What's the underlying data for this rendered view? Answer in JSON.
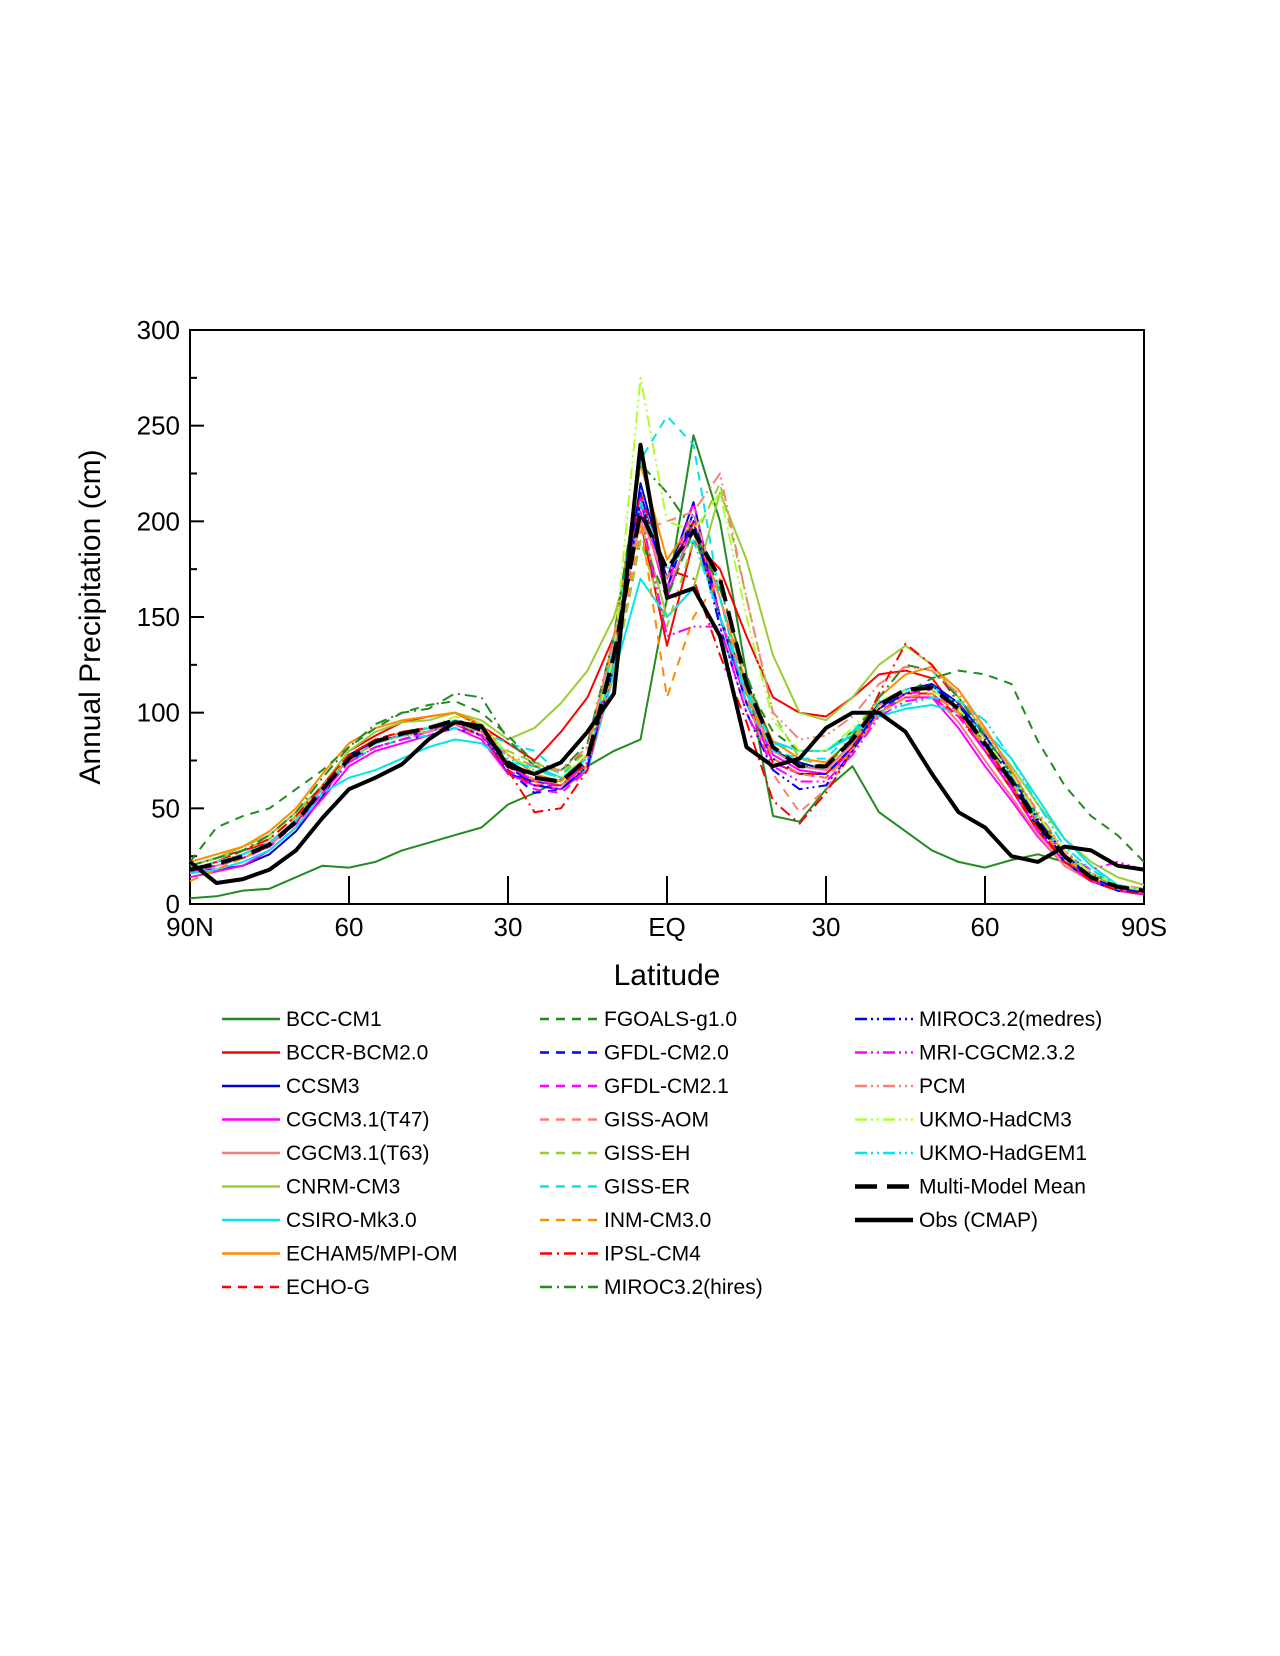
{
  "chart_data": {
    "type": "line",
    "xlabel": "Latitude",
    "ylabel": "Annual Precipitation (cm)",
    "ylim": [
      0,
      300
    ],
    "xlim": [
      -90,
      90
    ],
    "x_ticks": [
      {
        "value": -90,
        "label": "90N"
      },
      {
        "value": -60,
        "label": "60"
      },
      {
        "value": -30,
        "label": "30"
      },
      {
        "value": 0,
        "label": "EQ"
      },
      {
        "value": 30,
        "label": "30"
      },
      {
        "value": 60,
        "label": "60"
      },
      {
        "value": 90,
        "label": "90S"
      }
    ],
    "y_ticks": [
      0,
      50,
      100,
      150,
      200,
      250,
      300
    ],
    "grid": false,
    "legend_placement": "bottom",
    "x": [
      -90,
      -85,
      -80,
      -75,
      -70,
      -65,
      -60,
      -55,
      -50,
      -45,
      -40,
      -35,
      -30,
      -25,
      -20,
      -15,
      -10,
      -5,
      0,
      5,
      10,
      15,
      20,
      25,
      30,
      35,
      40,
      45,
      50,
      55,
      60,
      65,
      70,
      75,
      80,
      85,
      90
    ],
    "series": [
      {
        "name": "BCC-CM1",
        "color": "#228b22",
        "dash": "solid",
        "width": 2,
        "values": [
          3,
          4,
          7,
          8,
          14,
          20,
          19,
          22,
          28,
          32,
          36,
          40,
          52,
          58,
          65,
          72,
          80,
          86,
          160,
          245,
          200,
          120,
          46,
          43,
          60,
          72,
          48,
          38,
          28,
          22,
          19,
          23,
          26,
          22,
          16,
          9,
          7
        ]
      },
      {
        "name": "BCCR-BCM2.0",
        "color": "#ff0000",
        "dash": "solid",
        "width": 2,
        "values": [
          20,
          24,
          28,
          32,
          42,
          62,
          80,
          88,
          95,
          98,
          100,
          93,
          84,
          75,
          90,
          108,
          140,
          200,
          135,
          190,
          175,
          140,
          108,
          100,
          98,
          108,
          120,
          122,
          118,
          100,
          80,
          60,
          38,
          22,
          13,
          8,
          7
        ]
      },
      {
        "name": "CCSM3",
        "color": "#0000cd",
        "dash": "solid",
        "width": 2,
        "values": [
          18,
          18,
          20,
          26,
          38,
          56,
          78,
          85,
          88,
          90,
          95,
          90,
          68,
          64,
          62,
          72,
          120,
          220,
          170,
          210,
          150,
          110,
          80,
          74,
          70,
          84,
          105,
          112,
          115,
          105,
          88,
          68,
          42,
          24,
          14,
          8,
          6
        ]
      },
      {
        "name": "CGCM3.1(T47)",
        "color": "#ff00ff",
        "dash": "solid",
        "width": 2,
        "values": [
          14,
          17,
          20,
          28,
          40,
          55,
          72,
          80,
          84,
          88,
          92,
          86,
          68,
          62,
          60,
          70,
          130,
          210,
          160,
          200,
          150,
          105,
          78,
          70,
          68,
          80,
          100,
          108,
          108,
          92,
          72,
          54,
          35,
          20,
          12,
          7,
          5
        ]
      },
      {
        "name": "CGCM3.1(T63)",
        "color": "#f08080",
        "dash": "solid",
        "width": 2,
        "values": [
          16,
          20,
          24,
          30,
          44,
          60,
          76,
          84,
          88,
          92,
          96,
          90,
          72,
          65,
          62,
          72,
          135,
          205,
          165,
          195,
          150,
          110,
          80,
          72,
          70,
          84,
          104,
          110,
          110,
          95,
          75,
          56,
          36,
          20,
          12,
          7,
          5
        ]
      },
      {
        "name": "CNRM-CM3",
        "color": "#9acd32",
        "dash": "solid",
        "width": 2,
        "values": [
          20,
          24,
          30,
          36,
          48,
          62,
          80,
          90,
          95,
          96,
          100,
          96,
          86,
          92,
          105,
          122,
          150,
          200,
          150,
          165,
          215,
          180,
          130,
          100,
          96,
          108,
          125,
          135,
          125,
          108,
          90,
          72,
          52,
          34,
          22,
          14,
          10
        ]
      },
      {
        "name": "CSIRO-Mk3.0",
        "color": "#00e5ee",
        "dash": "solid",
        "width": 2,
        "values": [
          16,
          18,
          22,
          28,
          40,
          58,
          66,
          70,
          76,
          82,
          86,
          84,
          74,
          72,
          66,
          70,
          120,
          170,
          150,
          165,
          140,
          112,
          85,
          80,
          80,
          88,
          98,
          102,
          104,
          100,
          90,
          76,
          55,
          34,
          20,
          10,
          6
        ]
      },
      {
        "name": "ECHAM5/MPI-OM",
        "color": "#ff8c00",
        "dash": "solid",
        "width": 2,
        "values": [
          22,
          26,
          30,
          38,
          50,
          68,
          84,
          92,
          96,
          98,
          100,
          94,
          78,
          68,
          64,
          78,
          140,
          230,
          180,
          200,
          160,
          115,
          85,
          76,
          74,
          86,
          108,
          120,
          124,
          112,
          92,
          70,
          46,
          26,
          14,
          8,
          6
        ]
      },
      {
        "name": "ECHO-G",
        "color": "#ff0000",
        "dash": "dash",
        "width": 2,
        "values": [
          18,
          22,
          28,
          34,
          46,
          62,
          78,
          86,
          90,
          92,
          94,
          88,
          70,
          62,
          62,
          74,
          130,
          215,
          170,
          200,
          150,
          105,
          74,
          68,
          68,
          82,
          102,
          110,
          110,
          98,
          80,
          60,
          38,
          22,
          12,
          7,
          5
        ]
      },
      {
        "name": "FGOALS-g1.0",
        "color": "#228b22",
        "dash": "dash",
        "width": 2,
        "values": [
          22,
          40,
          46,
          50,
          60,
          70,
          82,
          92,
          100,
          104,
          106,
          100,
          88,
          74,
          70,
          80,
          120,
          190,
          160,
          195,
          150,
          115,
          90,
          80,
          80,
          90,
          100,
          110,
          118,
          122,
          120,
          115,
          85,
          62,
          46,
          36,
          22
        ]
      },
      {
        "name": "GFDL-CM2.0",
        "color": "#0000ff",
        "dash": "dash",
        "width": 2,
        "values": [
          18,
          20,
          24,
          30,
          42,
          58,
          75,
          82,
          86,
          88,
          92,
          88,
          70,
          58,
          60,
          72,
          125,
          215,
          165,
          205,
          150,
          105,
          76,
          68,
          68,
          82,
          102,
          112,
          114,
          102,
          82,
          62,
          40,
          22,
          12,
          7,
          5
        ]
      },
      {
        "name": "GFDL-CM2.1",
        "color": "#ff00ff",
        "dash": "dash",
        "width": 2,
        "values": [
          17,
          20,
          24,
          30,
          42,
          58,
          74,
          82,
          86,
          90,
          94,
          88,
          70,
          60,
          58,
          70,
          125,
          212,
          165,
          210,
          150,
          105,
          74,
          68,
          66,
          80,
          100,
          110,
          112,
          100,
          80,
          60,
          38,
          22,
          12,
          7,
          5
        ]
      },
      {
        "name": "GISS-AOM",
        "color": "#fa8072",
        "dash": "dash",
        "width": 2,
        "values": [
          18,
          22,
          26,
          32,
          44,
          60,
          74,
          82,
          86,
          88,
          92,
          88,
          74,
          68,
          62,
          72,
          120,
          195,
          200,
          205,
          160,
          108,
          68,
          48,
          60,
          80,
          100,
          108,
          110,
          100,
          84,
          64,
          42,
          24,
          14,
          8,
          6
        ]
      },
      {
        "name": "GISS-EH",
        "color": "#9acd32",
        "dash": "dash",
        "width": 2,
        "values": [
          20,
          24,
          28,
          34,
          46,
          62,
          76,
          84,
          88,
          90,
          94,
          90,
          80,
          74,
          68,
          80,
          120,
          190,
          145,
          190,
          220,
          160,
          100,
          76,
          72,
          86,
          104,
          112,
          112,
          102,
          84,
          64,
          44,
          26,
          16,
          10,
          7
        ]
      },
      {
        "name": "GISS-ER",
        "color": "#00e5ee",
        "dash": "dash",
        "width": 2,
        "values": [
          18,
          22,
          26,
          32,
          44,
          60,
          74,
          82,
          86,
          88,
          92,
          90,
          84,
          80,
          68,
          76,
          135,
          232,
          255,
          240,
          160,
          105,
          80,
          76,
          76,
          90,
          106,
          112,
          114,
          104,
          86,
          66,
          44,
          26,
          16,
          10,
          7
        ]
      },
      {
        "name": "INM-CM3.0",
        "color": "#ff8c00",
        "dash": "dash",
        "width": 2,
        "values": [
          12,
          18,
          24,
          32,
          44,
          62,
          76,
          84,
          90,
          92,
          96,
          92,
          74,
          64,
          62,
          72,
          125,
          200,
          108,
          150,
          170,
          110,
          76,
          68,
          66,
          80,
          100,
          108,
          110,
          100,
          82,
          62,
          42,
          24,
          14,
          8,
          6
        ]
      },
      {
        "name": "IPSL-CM4",
        "color": "#ff0000",
        "dash": "dashdot",
        "width": 2,
        "values": [
          18,
          22,
          28,
          34,
          46,
          62,
          78,
          86,
          90,
          92,
          94,
          88,
          70,
          48,
          50,
          70,
          130,
          210,
          175,
          170,
          130,
          95,
          54,
          42,
          58,
          80,
          110,
          136,
          125,
          105,
          84,
          62,
          40,
          22,
          12,
          7,
          5
        ]
      },
      {
        "name": "MIROC3.2(hires)",
        "color": "#228b22",
        "dash": "dashdot",
        "width": 2,
        "values": [
          20,
          24,
          28,
          36,
          48,
          66,
          82,
          94,
          100,
          102,
          110,
          108,
          86,
          72,
          70,
          84,
          140,
          230,
          215,
          195,
          165,
          120,
          82,
          72,
          72,
          88,
          108,
          125,
          122,
          108,
          88,
          68,
          46,
          28,
          16,
          10,
          7
        ]
      },
      {
        "name": "MIROC3.2(medres)",
        "color": "#0000ff",
        "dash": "dashdotdot",
        "width": 2,
        "values": [
          18,
          22,
          26,
          32,
          44,
          60,
          76,
          84,
          88,
          90,
          94,
          88,
          72,
          62,
          60,
          72,
          125,
          210,
          170,
          200,
          145,
          100,
          70,
          60,
          62,
          80,
          102,
          110,
          114,
          104,
          86,
          66,
          44,
          26,
          14,
          8,
          6
        ]
      },
      {
        "name": "MRI-CGCM2.3.2",
        "color": "#ff00ff",
        "dash": "dashdotdot",
        "width": 2,
        "values": [
          18,
          22,
          26,
          32,
          44,
          58,
          74,
          82,
          86,
          90,
          94,
          88,
          72,
          64,
          62,
          74,
          130,
          205,
          140,
          145,
          145,
          100,
          72,
          64,
          64,
          78,
          98,
          106,
          108,
          98,
          80,
          62,
          42,
          26,
          18,
          22,
          18
        ]
      },
      {
        "name": "PCM",
        "color": "#fa8072",
        "dash": "dashdotdot",
        "width": 2,
        "values": [
          18,
          22,
          26,
          32,
          44,
          60,
          76,
          84,
          88,
          90,
          94,
          90,
          78,
          72,
          70,
          82,
          140,
          200,
          170,
          205,
          225,
          160,
          100,
          86,
          88,
          98,
          115,
          124,
          122,
          110,
          90,
          70,
          48,
          28,
          16,
          10,
          8
        ]
      },
      {
        "name": "UKMO-HadCM3",
        "color": "#adff2f",
        "dash": "dashdotdot",
        "width": 2,
        "values": [
          18,
          22,
          26,
          32,
          44,
          60,
          76,
          84,
          88,
          92,
          98,
          94,
          78,
          70,
          66,
          78,
          130,
          275,
          200,
          195,
          215,
          150,
          96,
          80,
          80,
          92,
          106,
          112,
          112,
          102,
          86,
          68,
          46,
          28,
          16,
          10,
          7
        ]
      },
      {
        "name": "UKMO-HadGEM1",
        "color": "#00e5ee",
        "dash": "dashdotdot",
        "width": 2,
        "values": [
          18,
          22,
          26,
          32,
          44,
          60,
          76,
          84,
          88,
          92,
          96,
          92,
          76,
          70,
          66,
          76,
          125,
          210,
          175,
          190,
          150,
          110,
          84,
          80,
          80,
          90,
          100,
          104,
          108,
          106,
          96,
          76,
          52,
          30,
          18,
          10,
          7
        ]
      },
      {
        "name": "Multi-Model Mean",
        "color": "#000000",
        "dash": "longdash",
        "width": 4,
        "values": [
          18,
          21,
          25,
          31,
          43,
          60,
          76,
          85,
          89,
          92,
          96,
          91,
          74,
          66,
          64,
          76,
          130,
          205,
          175,
          195,
          170,
          115,
          82,
          72,
          72,
          86,
          104,
          112,
          113,
          102,
          84,
          64,
          42,
          25,
          14,
          9,
          7
        ]
      },
      {
        "name": "Obs (CMAP)",
        "color": "#000000",
        "dash": "solid",
        "width": 4,
        "values": [
          22,
          11,
          13,
          18,
          28,
          45,
          60,
          66,
          73,
          86,
          95,
          93,
          72,
          68,
          74,
          90,
          110,
          240,
          160,
          165,
          140,
          82,
          72,
          76,
          92,
          100,
          100,
          90,
          68,
          48,
          40,
          25,
          22,
          30,
          28,
          20,
          18
        ]
      }
    ]
  }
}
